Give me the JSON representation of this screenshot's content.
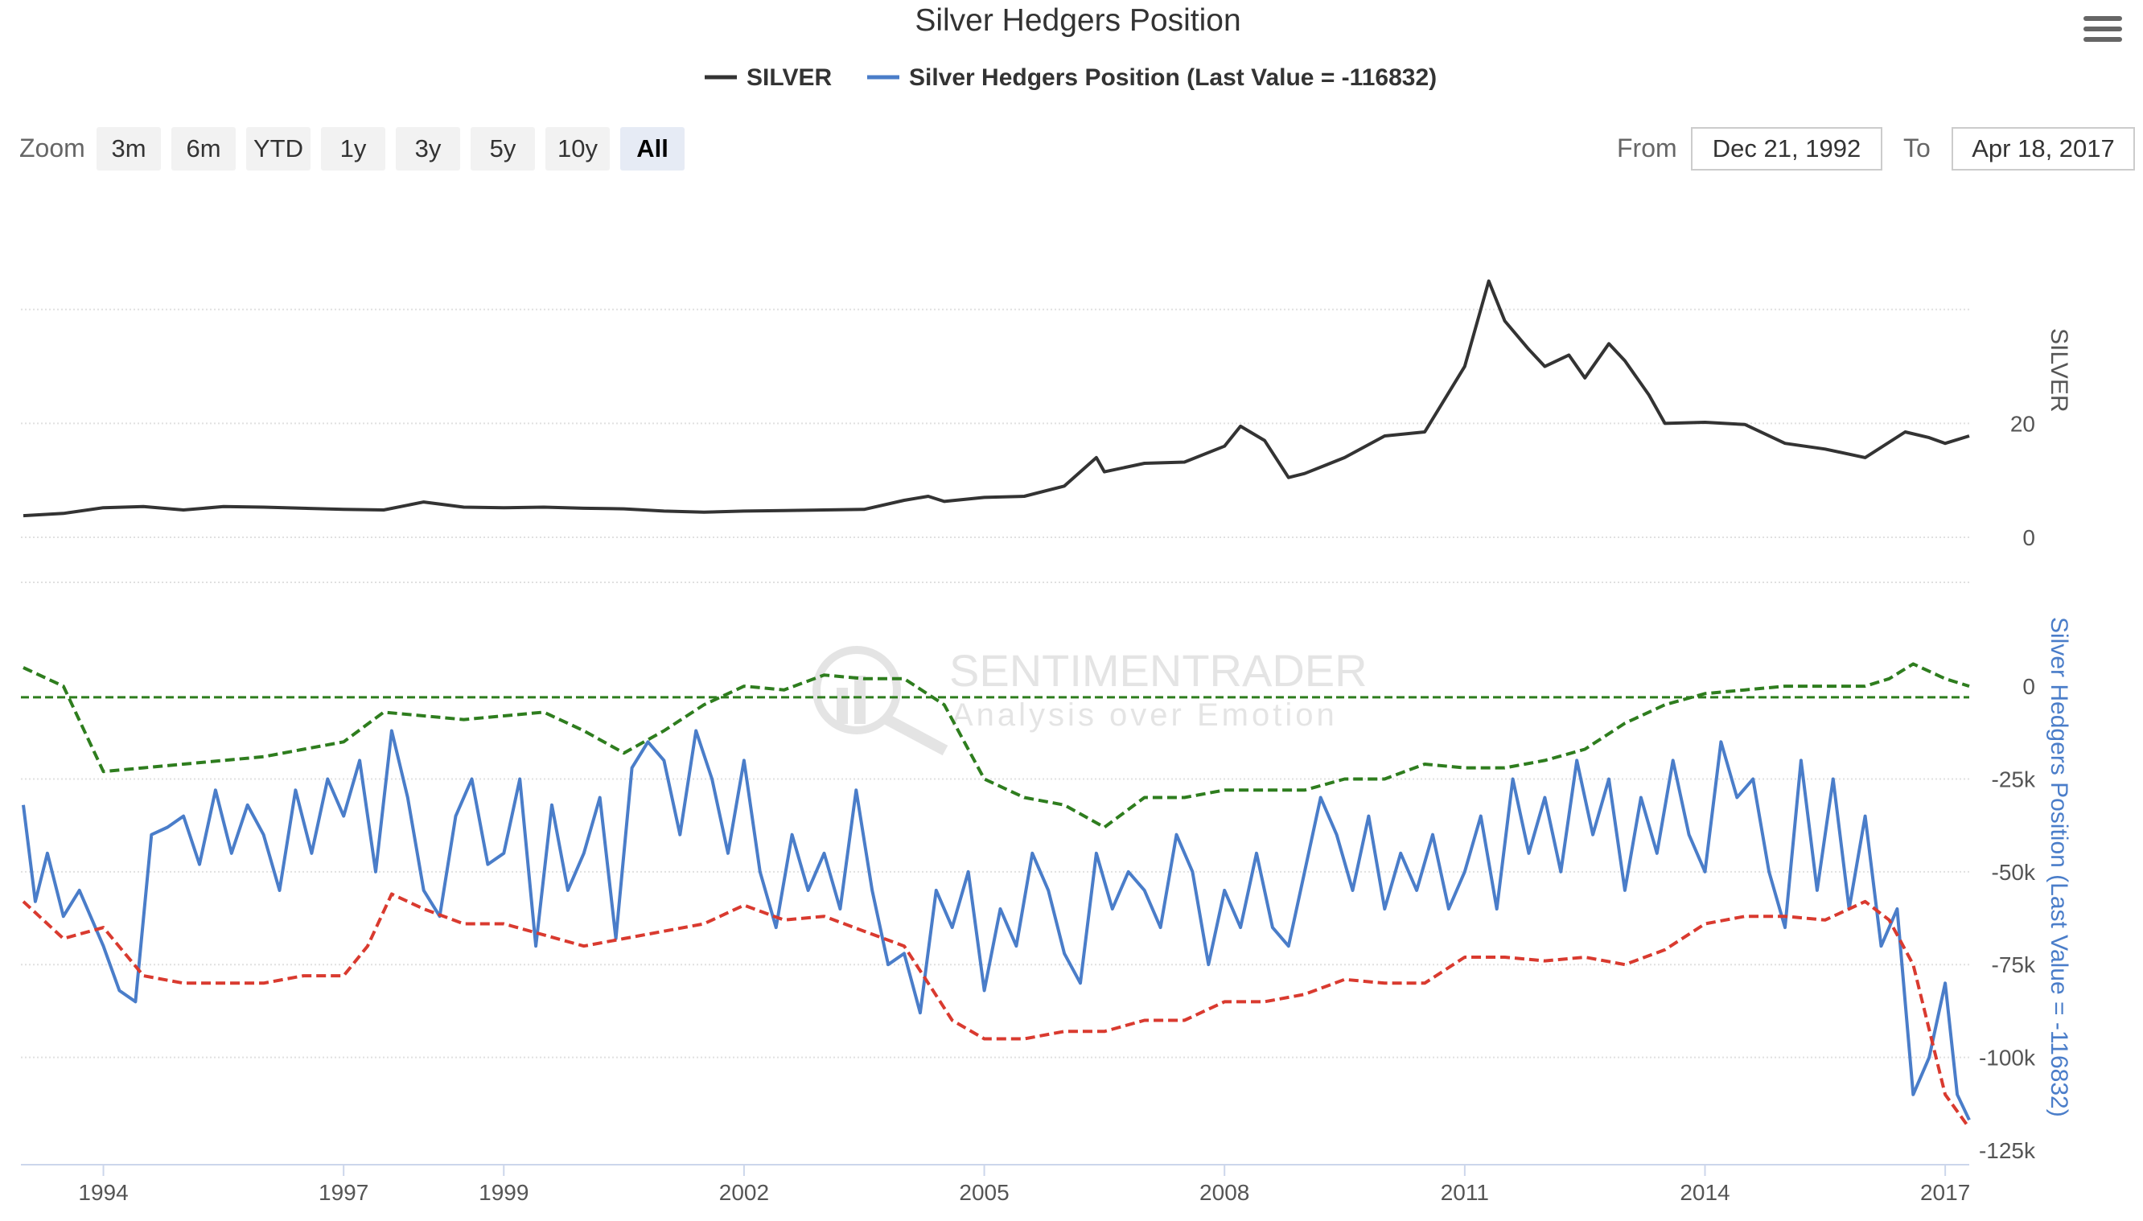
{
  "title": "Silver Hedgers Position",
  "menu_icon": "hamburger-menu-icon",
  "legend": [
    {
      "label": "SILVER",
      "color": "#333333"
    },
    {
      "label": "Silver Hedgers Position (Last Value = -116832)",
      "color": "#4a7dc9"
    }
  ],
  "zoom": {
    "label": "Zoom",
    "buttons": [
      "3m",
      "6m",
      "YTD",
      "1y",
      "3y",
      "5y",
      "10y",
      "All"
    ],
    "active": "All"
  },
  "range": {
    "from_label": "From",
    "from_value": "Dec 21, 1992",
    "to_label": "To",
    "to_value": "Apr 18, 2017"
  },
  "watermark": {
    "line1": "SENTIMENTRADER",
    "line2": "Analysis over Emotion"
  },
  "colors": {
    "silver": "#333333",
    "hedgers": "#4a7dc9",
    "upper_band": "#2e7d1e",
    "lower_band": "#d93a2f",
    "zero_line": "#2e7d1e"
  },
  "chart_data": {
    "type": "line",
    "x_range": [
      1992.97,
      2017.3
    ],
    "x_ticks": [
      "1994",
      "1997",
      "1999",
      "2002",
      "2005",
      "2008",
      "2011",
      "2014",
      "2017"
    ],
    "x_tick_values": [
      1994,
      1997,
      1999,
      2002,
      2005,
      2008,
      2011,
      2014,
      2017
    ],
    "panels": [
      {
        "name": "SILVER",
        "axis_title": "SILVER",
        "ylim": [
          0,
          50
        ],
        "y_ticks": [
          "0",
          "20"
        ],
        "y_tick_values": [
          0,
          20
        ],
        "series": [
          {
            "name": "SILVER",
            "color": "#333333",
            "x": [
              1993.0,
              1993.5,
              1994.0,
              1994.5,
              1995.0,
              1995.5,
              1996.0,
              1996.5,
              1997.0,
              1997.5,
              1998.0,
              1998.5,
              1999.0,
              1999.5,
              2000.0,
              2000.5,
              2001.0,
              2001.5,
              2002.0,
              2002.5,
              2003.0,
              2003.5,
              2004.0,
              2004.3,
              2004.5,
              2005.0,
              2005.5,
              2006.0,
              2006.4,
              2006.5,
              2007.0,
              2007.5,
              2008.0,
              2008.2,
              2008.5,
              2008.8,
              2009.0,
              2009.5,
              2010.0,
              2010.5,
              2011.0,
              2011.3,
              2011.5,
              2011.8,
              2012.0,
              2012.3,
              2012.5,
              2012.8,
              2013.0,
              2013.3,
              2013.5,
              2014.0,
              2014.5,
              2015.0,
              2015.5,
              2016.0,
              2016.5,
              2016.8,
              2017.0,
              2017.3
            ],
            "values": [
              3.8,
              4.2,
              5.2,
              5.4,
              4.8,
              5.4,
              5.3,
              5.1,
              4.9,
              4.8,
              6.2,
              5.3,
              5.2,
              5.3,
              5.1,
              5.0,
              4.6,
              4.4,
              4.6,
              4.7,
              4.8,
              4.9,
              6.5,
              7.2,
              6.3,
              7.0,
              7.2,
              9.0,
              14.0,
              11.5,
              13.0,
              13.2,
              16.0,
              19.5,
              17.0,
              10.5,
              11.2,
              14.0,
              17.8,
              18.5,
              30.0,
              45.0,
              38.0,
              33.0,
              30.0,
              32.0,
              28.0,
              34.0,
              31.0,
              25.0,
              20.0,
              20.2,
              19.8,
              16.5,
              15.5,
              14.0,
              18.5,
              17.5,
              16.5,
              17.8
            ]
          }
        ]
      },
      {
        "name": "Silver Hedgers Position",
        "axis_title": "Silver Hedgers Position (Last Value = -116832)",
        "ylim": [
          -125000,
          5000
        ],
        "y_ticks": [
          "0",
          "-25k",
          "-50k",
          "-75k",
          "-100k",
          "-125k"
        ],
        "y_tick_values": [
          0,
          -25000,
          -50000,
          -75000,
          -100000,
          -125000
        ],
        "series": [
          {
            "name": "Silver Hedgers Position (Last Value = -116832)",
            "color": "#4a7dc9",
            "x": [
              1993.0,
              1993.15,
              1993.3,
              1993.5,
              1993.7,
              1994.0,
              1994.2,
              1994.4,
              1994.6,
              1994.8,
              1995.0,
              1995.2,
              1995.4,
              1995.6,
              1995.8,
              1996.0,
              1996.2,
              1996.4,
              1996.6,
              1996.8,
              1997.0,
              1997.2,
              1997.4,
              1997.6,
              1997.8,
              1998.0,
              1998.2,
              1998.4,
              1998.6,
              1998.8,
              1999.0,
              1999.2,
              1999.4,
              1999.6,
              1999.8,
              2000.0,
              2000.2,
              2000.4,
              2000.6,
              2000.8,
              2001.0,
              2001.2,
              2001.4,
              2001.6,
              2001.8,
              2002.0,
              2002.2,
              2002.4,
              2002.6,
              2002.8,
              2003.0,
              2003.2,
              2003.4,
              2003.6,
              2003.8,
              2004.0,
              2004.2,
              2004.4,
              2004.6,
              2004.8,
              2005.0,
              2005.2,
              2005.4,
              2005.6,
              2005.8,
              2006.0,
              2006.2,
              2006.4,
              2006.6,
              2006.8,
              2007.0,
              2007.2,
              2007.4,
              2007.6,
              2007.8,
              2008.0,
              2008.2,
              2008.4,
              2008.6,
              2008.8,
              2009.0,
              2009.2,
              2009.4,
              2009.6,
              2009.8,
              2010.0,
              2010.2,
              2010.4,
              2010.6,
              2010.8,
              2011.0,
              2011.2,
              2011.4,
              2011.6,
              2011.8,
              2012.0,
              2012.2,
              2012.4,
              2012.6,
              2012.8,
              2013.0,
              2013.2,
              2013.4,
              2013.6,
              2013.8,
              2014.0,
              2014.2,
              2014.4,
              2014.6,
              2014.8,
              2015.0,
              2015.2,
              2015.4,
              2015.6,
              2015.8,
              2016.0,
              2016.2,
              2016.4,
              2016.6,
              2016.8,
              2017.0,
              2017.15,
              2017.3
            ],
            "values": [
              -32000,
              -58000,
              -45000,
              -62000,
              -55000,
              -70000,
              -82000,
              -85000,
              -40000,
              -38000,
              -35000,
              -48000,
              -28000,
              -45000,
              -32000,
              -40000,
              -55000,
              -28000,
              -45000,
              -25000,
              -35000,
              -20000,
              -50000,
              -12000,
              -30000,
              -55000,
              -62000,
              -35000,
              -25000,
              -48000,
              -45000,
              -25000,
              -70000,
              -32000,
              -55000,
              -45000,
              -30000,
              -68000,
              -22000,
              -15000,
              -20000,
              -40000,
              -12000,
              -25000,
              -45000,
              -20000,
              -50000,
              -65000,
              -40000,
              -55000,
              -45000,
              -60000,
              -28000,
              -55000,
              -75000,
              -72000,
              -88000,
              -55000,
              -65000,
              -50000,
              -82000,
              -60000,
              -70000,
              -45000,
              -55000,
              -72000,
              -80000,
              -45000,
              -60000,
              -50000,
              -55000,
              -65000,
              -40000,
              -50000,
              -75000,
              -55000,
              -65000,
              -45000,
              -65000,
              -70000,
              -50000,
              -30000,
              -40000,
              -55000,
              -35000,
              -60000,
              -45000,
              -55000,
              -40000,
              -60000,
              -50000,
              -35000,
              -60000,
              -25000,
              -45000,
              -30000,
              -50000,
              -20000,
              -40000,
              -25000,
              -55000,
              -30000,
              -45000,
              -20000,
              -40000,
              -50000,
              -15000,
              -30000,
              -25000,
              -50000,
              -65000,
              -20000,
              -55000,
              -25000,
              -60000,
              -35000,
              -70000,
              -60000,
              -110000,
              -100000,
              -80000,
              -110000,
              -116832
            ]
          },
          {
            "name": "Upper band",
            "color": "#2e7d1e",
            "x": [
              1993.0,
              1993.5,
              1994.0,
              1994.5,
              1995.0,
              1995.5,
              1996.0,
              1996.5,
              1997.0,
              1997.5,
              1998.0,
              1998.5,
              1999.0,
              1999.5,
              2000.0,
              2000.5,
              2001.0,
              2001.5,
              2002.0,
              2002.5,
              2003.0,
              2003.5,
              2004.0,
              2004.5,
              2005.0,
              2005.5,
              2006.0,
              2006.5,
              2007.0,
              2007.5,
              2008.0,
              2008.5,
              2009.0,
              2009.5,
              2010.0,
              2010.5,
              2011.0,
              2011.5,
              2012.0,
              2012.5,
              2013.0,
              2013.5,
              2014.0,
              2014.5,
              2015.0,
              2015.5,
              2016.0,
              2016.3,
              2016.6,
              2017.0,
              2017.3
            ],
            "values": [
              5000,
              0,
              -23000,
              -22000,
              -21000,
              -20000,
              -19000,
              -17000,
              -15000,
              -7000,
              -8000,
              -9000,
              -8000,
              -7000,
              -12000,
              -18000,
              -12000,
              -5000,
              0,
              -1000,
              3000,
              2000,
              2000,
              -5000,
              -25000,
              -30000,
              -32000,
              -38000,
              -30000,
              -30000,
              -28000,
              -28000,
              -28000,
              -25000,
              -25000,
              -21000,
              -22000,
              -22000,
              -20000,
              -17000,
              -10000,
              -5000,
              -2000,
              -1000,
              0,
              0,
              0,
              2000,
              6000,
              2000,
              0
            ]
          },
          {
            "name": "Lower band",
            "color": "#d93a2f",
            "x": [
              1993.0,
              1993.5,
              1994.0,
              1994.5,
              1995.0,
              1995.5,
              1996.0,
              1996.5,
              1997.0,
              1997.3,
              1997.6,
              1998.0,
              1998.5,
              1999.0,
              1999.5,
              2000.0,
              2000.5,
              2001.0,
              2001.5,
              2002.0,
              2002.5,
              2003.0,
              2003.5,
              2004.0,
              2004.3,
              2004.6,
              2005.0,
              2005.5,
              2006.0,
              2006.5,
              2007.0,
              2007.5,
              2008.0,
              2008.5,
              2009.0,
              2009.5,
              2010.0,
              2010.5,
              2011.0,
              2011.5,
              2012.0,
              2012.5,
              2013.0,
              2013.5,
              2014.0,
              2014.5,
              2015.0,
              2015.5,
              2016.0,
              2016.3,
              2016.6,
              2017.0,
              2017.3
            ],
            "values": [
              -58000,
              -68000,
              -65000,
              -78000,
              -80000,
              -80000,
              -80000,
              -78000,
              -78000,
              -70000,
              -56000,
              -60000,
              -64000,
              -64000,
              -67000,
              -70000,
              -68000,
              -66000,
              -64000,
              -59000,
              -63000,
              -62000,
              -66000,
              -70000,
              -80000,
              -90000,
              -95000,
              -95000,
              -93000,
              -93000,
              -90000,
              -90000,
              -85000,
              -85000,
              -83000,
              -79000,
              -80000,
              -80000,
              -73000,
              -73000,
              -74000,
              -73000,
              -75000,
              -71000,
              -64000,
              -62000,
              -62000,
              -63000,
              -58000,
              -63000,
              -75000,
              -110000,
              -119000
            ]
          },
          {
            "name": "Zero line",
            "color": "#2e7d1e",
            "x": [
              1992.97,
              2017.3
            ],
            "values": [
              -3000,
              -3000
            ]
          }
        ]
      }
    ]
  }
}
